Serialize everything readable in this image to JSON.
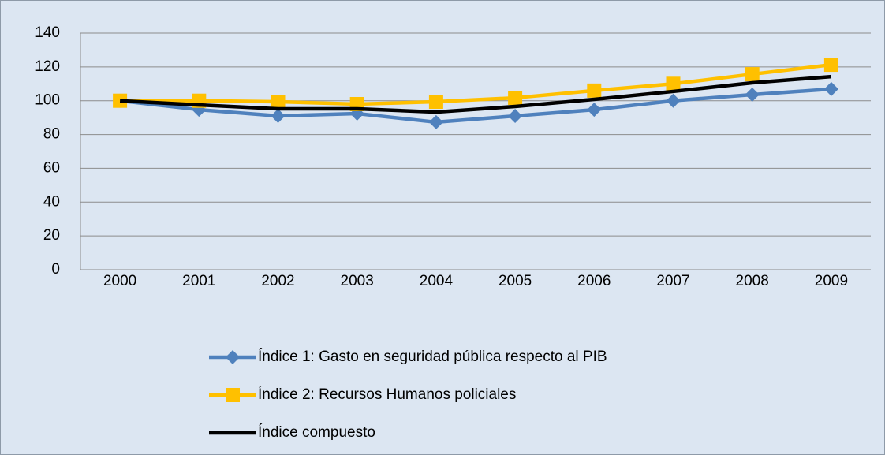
{
  "chart_data": {
    "type": "line",
    "categories": [
      "2000",
      "2001",
      "2002",
      "2003",
      "2004",
      "2005",
      "2006",
      "2007",
      "2008",
      "2009"
    ],
    "series": [
      {
        "name": "Índice 1: Gasto en seguridad pública respecto al PIB",
        "color": "#4f81bd",
        "marker": "diamond",
        "values": [
          100,
          94.7,
          91,
          92.4,
          87.3,
          91,
          94.7,
          100,
          103.6,
          106.9
        ]
      },
      {
        "name": "Índice 2: Recursos Humanos policiales",
        "color": "#ffc000",
        "marker": "square",
        "values": [
          100,
          100,
          99.4,
          98,
          99.4,
          101.7,
          106,
          110,
          115.7,
          121.3
        ]
      },
      {
        "name": "Índice compuesto",
        "color": "#000000",
        "marker": "none",
        "values": [
          100,
          97.5,
          95.2,
          95.2,
          93.3,
          96.6,
          100.8,
          105.5,
          110.6,
          114.3
        ]
      }
    ],
    "ylim": [
      0,
      140
    ],
    "yticks": [
      0,
      20,
      40,
      60,
      80,
      100,
      120,
      140
    ],
    "grid": true,
    "legend": "bottom"
  }
}
